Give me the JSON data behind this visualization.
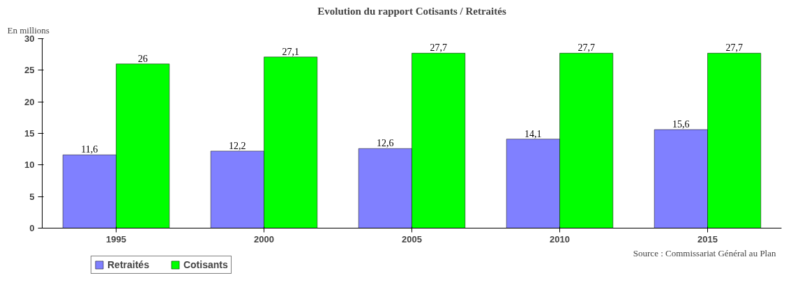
{
  "chart_data": {
    "type": "bar",
    "title": "Evolution du rapport Cotisants / Retraités",
    "ylabel": "En millions",
    "categories": [
      "1995",
      "2000",
      "2005",
      "2010",
      "2015"
    ],
    "series": [
      {
        "name": "Retraités",
        "color": "#8080ff",
        "values": [
          11.6,
          12.2,
          12.6,
          14.1,
          15.6
        ],
        "value_labels": [
          "11,6",
          "12,2",
          "12,6",
          "14,1",
          "15,6"
        ]
      },
      {
        "name": "Cotisants",
        "color": "#00ff00",
        "values": [
          26,
          27.1,
          27.7,
          27.7,
          27.7
        ],
        "value_labels": [
          "26",
          "27,1",
          "27,7",
          "27,7",
          "27,7"
        ]
      }
    ],
    "ylim": [
      0,
      30
    ],
    "yticks": [
      0,
      5,
      10,
      15,
      20,
      25,
      30
    ],
    "grid": false,
    "legend": "bottom left",
    "annotations": [
      "Source : Commissariat Général au Plan"
    ]
  }
}
